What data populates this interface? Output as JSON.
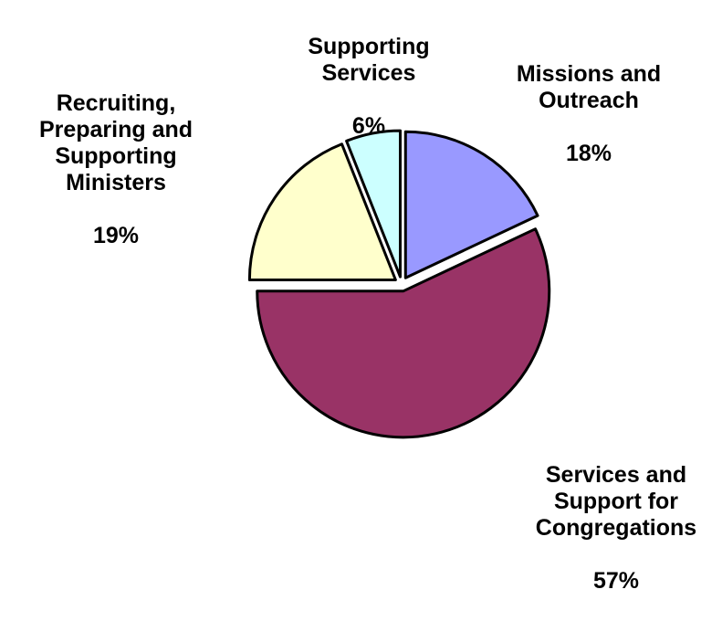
{
  "chart_data": {
    "type": "pie",
    "slices": [
      {
        "label": "Missions and\nOutreach",
        "value": 18,
        "value_text": "18%",
        "color": "#9999ff"
      },
      {
        "label": "Services and\nSupport for\nCongregations",
        "value": 57,
        "value_text": "57%",
        "color": "#993366"
      },
      {
        "label": "Recruiting,\nPreparing and\nSupporting\nMinisters",
        "value": 19,
        "value_text": "19%",
        "color": "#ffffcc"
      },
      {
        "label": "Supporting\nServices",
        "value": 6,
        "value_text": "6%",
        "color": "#ccffff"
      }
    ],
    "exploded": true,
    "legend": "none"
  }
}
